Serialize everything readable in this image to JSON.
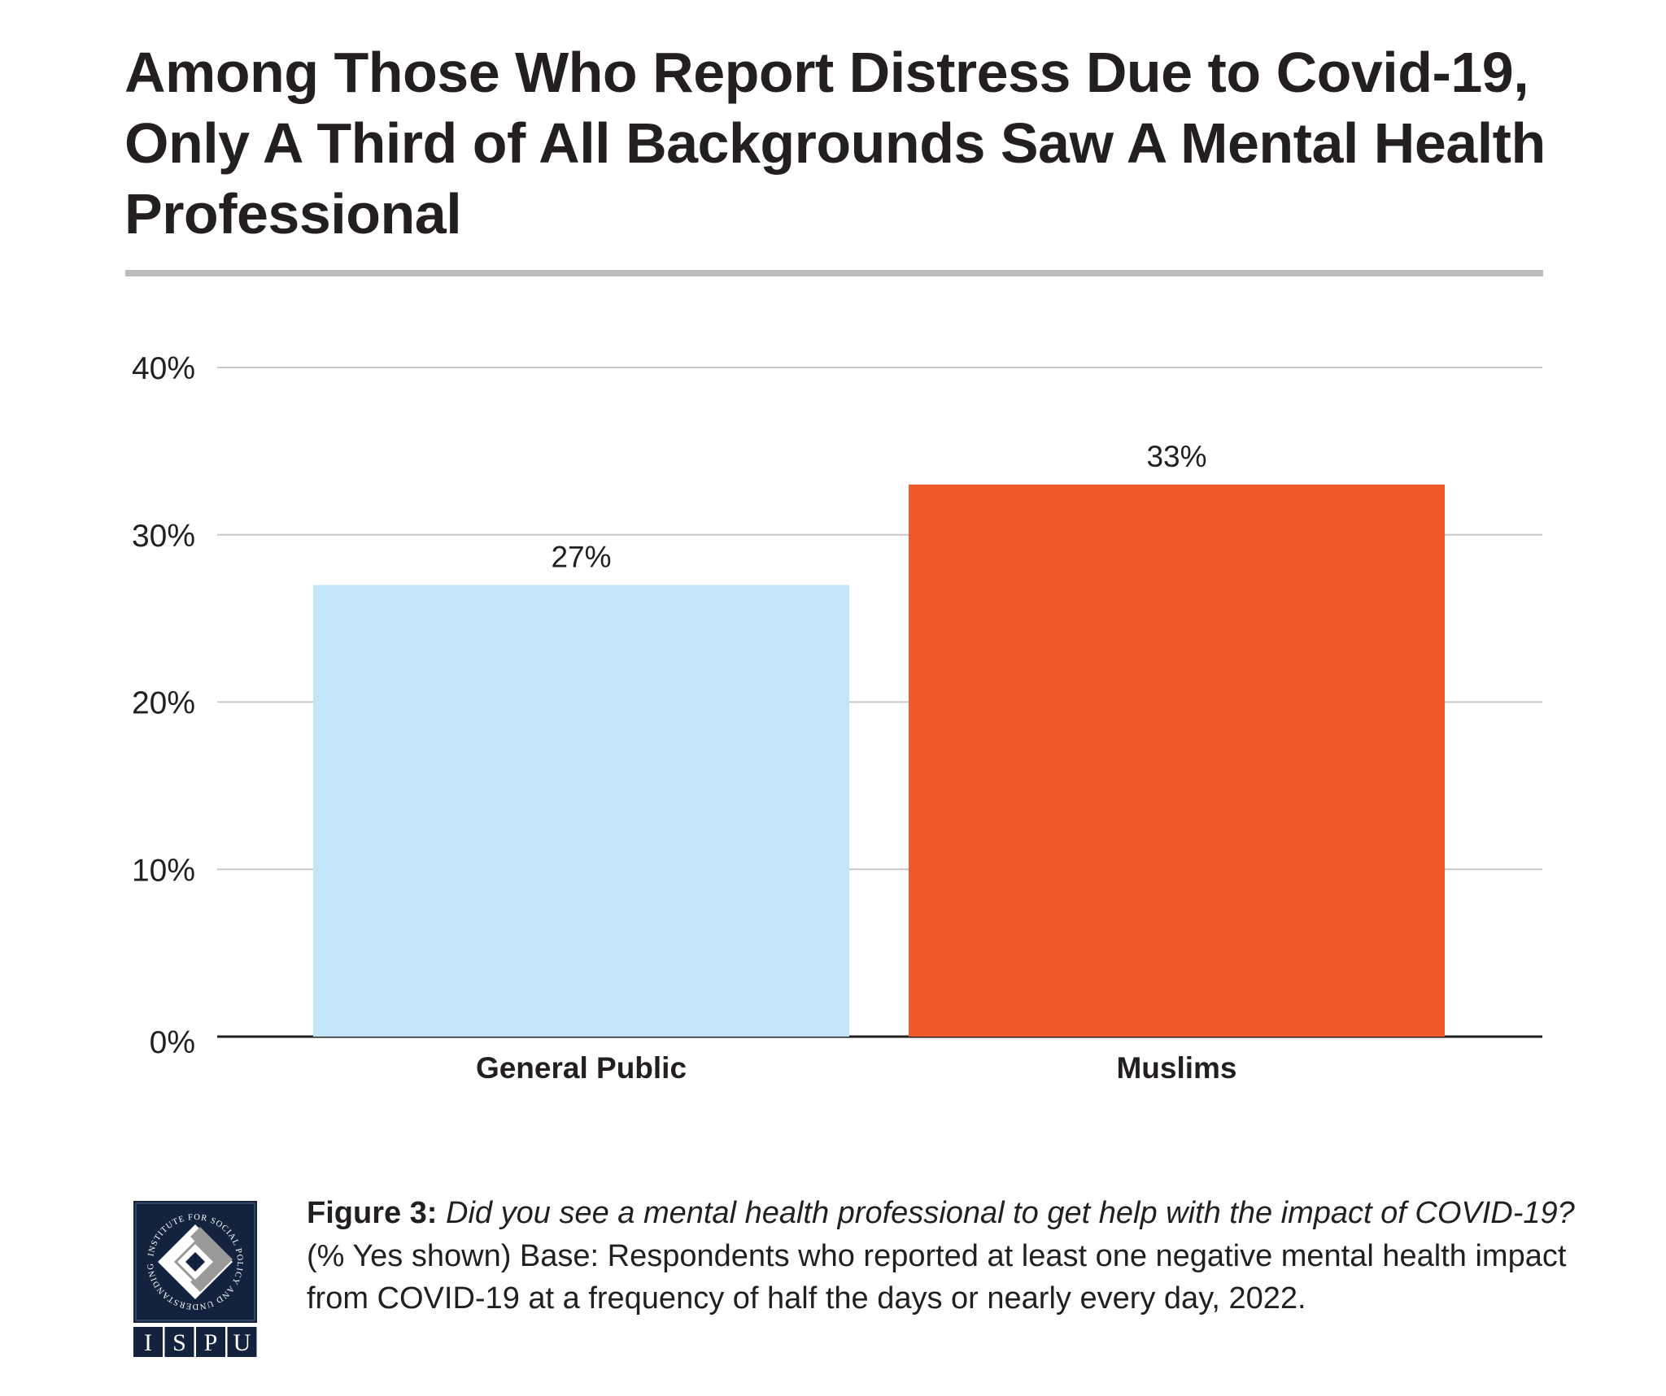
{
  "title": "Among Those Who Report Distress Due to Covid-19, Only A Third of All Backgrounds Saw A Mental Health Professional",
  "chart_data": {
    "type": "bar",
    "title": "Among Those Who Report Distress Due to Covid-19, Only A Third of All Backgrounds Saw A Mental Health Professional",
    "categories": [
      "General Public",
      "Muslims"
    ],
    "values": [
      27,
      33
    ],
    "data_labels": [
      "27%",
      "33%"
    ],
    "colors": [
      "#c2e6f8",
      "#f05a28"
    ],
    "xlabel": "",
    "ylabel": "",
    "ylim": [
      0,
      40
    ],
    "yticks": [
      0,
      10,
      20,
      30,
      40
    ],
    "ytick_labels": [
      "0%",
      "10%",
      "20%",
      "30%",
      "40%"
    ],
    "grid": true
  },
  "caption": {
    "figure_label": "Figure 3:",
    "question": "Did you see a mental health professional to get help with the impact of COVID-19?",
    "note": "(% Yes shown) Base: Respondents who reported at least one negative mental health impact from COVID-19 at a frequency of half the days or nearly every day, 2022."
  },
  "logo": {
    "ring_text": "INSTITUTE FOR SOCIAL POLICY AND UNDERSTANDING",
    "letters": [
      "I",
      "S",
      "P",
      "U"
    ],
    "color": "#14233d"
  }
}
